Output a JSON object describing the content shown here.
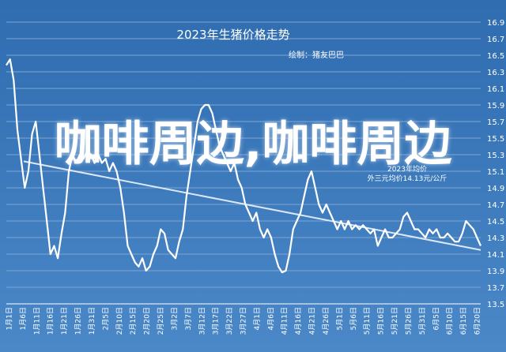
{
  "colors": {
    "background": "#3d78b8",
    "line": "#ffffff",
    "trend": "#dce8f6",
    "grid": "#7ea6d4"
  },
  "watermark": "咖啡周边,咖啡周边",
  "chart_data": {
    "type": "line",
    "title": "2023年生猪价格走势",
    "subtitle": "绘制：猪友巴巴",
    "annotation_lines": [
      "2023年均价",
      "外三元均价14.13元/公斤"
    ],
    "ylim": [
      13.5,
      16.9
    ],
    "yticks": [
      16.9,
      16.7,
      16.5,
      16.3,
      16.1,
      15.9,
      15.7,
      15.5,
      15.3,
      15.1,
      14.9,
      14.7,
      14.5,
      14.3,
      14.1,
      13.9,
      13.7,
      13.5
    ],
    "x_tick_labels": [
      "1月1日",
      "1月6日",
      "1月11日",
      "1月16日",
      "1月21日",
      "1月26日",
      "1月31日",
      "2月5日",
      "2月10日",
      "2月15日",
      "2月20日",
      "2月25日",
      "3月2日",
      "3月7日",
      "3月12日",
      "3月17日",
      "3月22日",
      "3月27日",
      "4月1日",
      "4月6日",
      "4月11日",
      "4月16日",
      "4月21日",
      "4月26日",
      "5月1日",
      "5月6日",
      "5月11日",
      "5月16日",
      "5月21日",
      "5月26日",
      "5月31日",
      "6月5日",
      "6月10日",
      "6月15日",
      "6月20日"
    ],
    "series": [
      {
        "values": [
          16.38,
          16.45,
          16.2,
          15.6,
          15.25,
          14.9,
          15.1,
          15.55,
          15.7,
          15.3,
          14.9,
          14.5,
          14.1,
          14.2,
          14.05,
          14.35,
          14.6,
          15.1,
          15.3,
          15.2,
          15.3,
          15.25,
          15.35,
          15.3,
          15.2,
          15.3,
          15.2,
          15.25,
          15.1,
          15.2,
          15.1,
          14.9,
          14.6,
          14.2,
          14.1,
          14.0,
          13.95,
          14.05,
          13.9,
          13.95,
          14.1,
          14.2,
          14.4,
          14.35,
          14.15,
          14.1,
          14.05,
          14.25,
          14.4,
          14.8,
          15.1,
          15.4,
          15.7,
          15.85,
          15.9,
          15.9,
          15.8,
          15.6,
          15.4,
          15.3,
          15.2,
          15.1,
          15.2,
          15.0,
          14.9,
          14.7,
          14.6,
          14.5,
          14.6,
          14.4,
          14.3,
          14.4,
          14.3,
          14.1,
          13.95,
          13.88,
          13.9,
          14.1,
          14.4,
          14.5,
          14.6,
          14.8,
          15.0,
          15.1,
          14.9,
          14.7,
          14.6,
          14.7,
          14.6,
          14.5,
          14.4,
          14.5,
          14.4,
          14.5,
          14.4,
          14.45,
          14.4,
          14.45,
          14.4,
          14.35,
          14.4,
          14.2,
          14.3,
          14.4,
          14.3,
          14.3,
          14.35,
          14.4,
          14.55,
          14.6,
          14.5,
          14.4,
          14.4,
          14.35,
          14.3,
          14.4,
          14.35,
          14.4,
          14.3,
          14.3,
          14.35,
          14.3,
          14.25,
          14.25,
          14.35,
          14.5,
          14.45,
          14.4,
          14.3,
          14.2
        ]
      },
      {
        "values": [
          15.22,
          14.15
        ]
      }
    ]
  }
}
